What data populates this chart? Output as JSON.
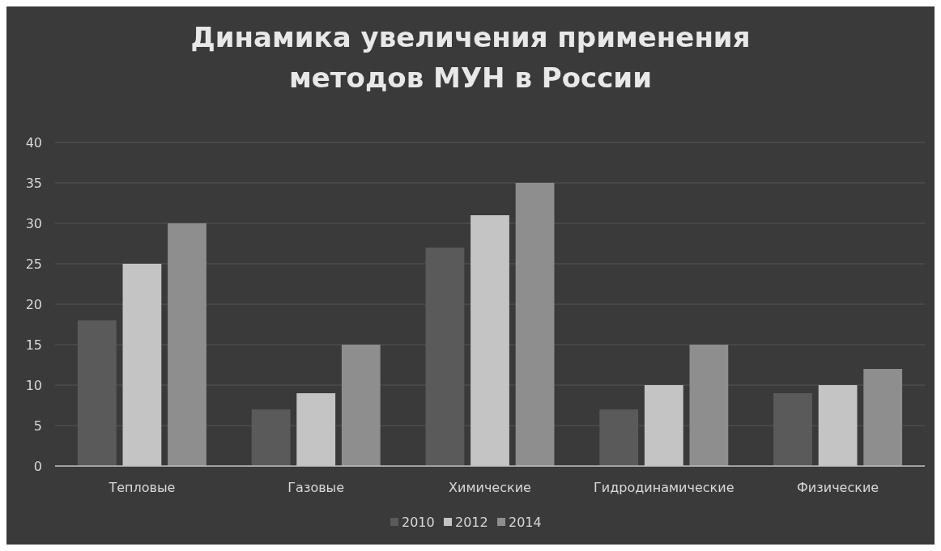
{
  "chart_data": {
    "type": "bar",
    "title": "Динамика увеличения применения методов МУН в России",
    "categories": [
      "Тепловые",
      "Газовые",
      "Химические",
      "Гидродинамические",
      "Физические"
    ],
    "series": [
      {
        "name": "2010",
        "color": "#5a5a5a",
        "values": [
          18,
          7,
          27,
          7,
          9
        ]
      },
      {
        "name": "2012",
        "color": "#c4c4c4",
        "values": [
          25,
          9,
          31,
          10,
          10
        ]
      },
      {
        "name": "2014",
        "color": "#8e8e8e",
        "values": [
          30,
          15,
          35,
          15,
          12
        ]
      }
    ],
    "ylim": [
      0,
      40
    ],
    "yticks": [
      0,
      5,
      10,
      15,
      20,
      25,
      30,
      35,
      40
    ],
    "grid": "y",
    "legend": "bottom"
  }
}
